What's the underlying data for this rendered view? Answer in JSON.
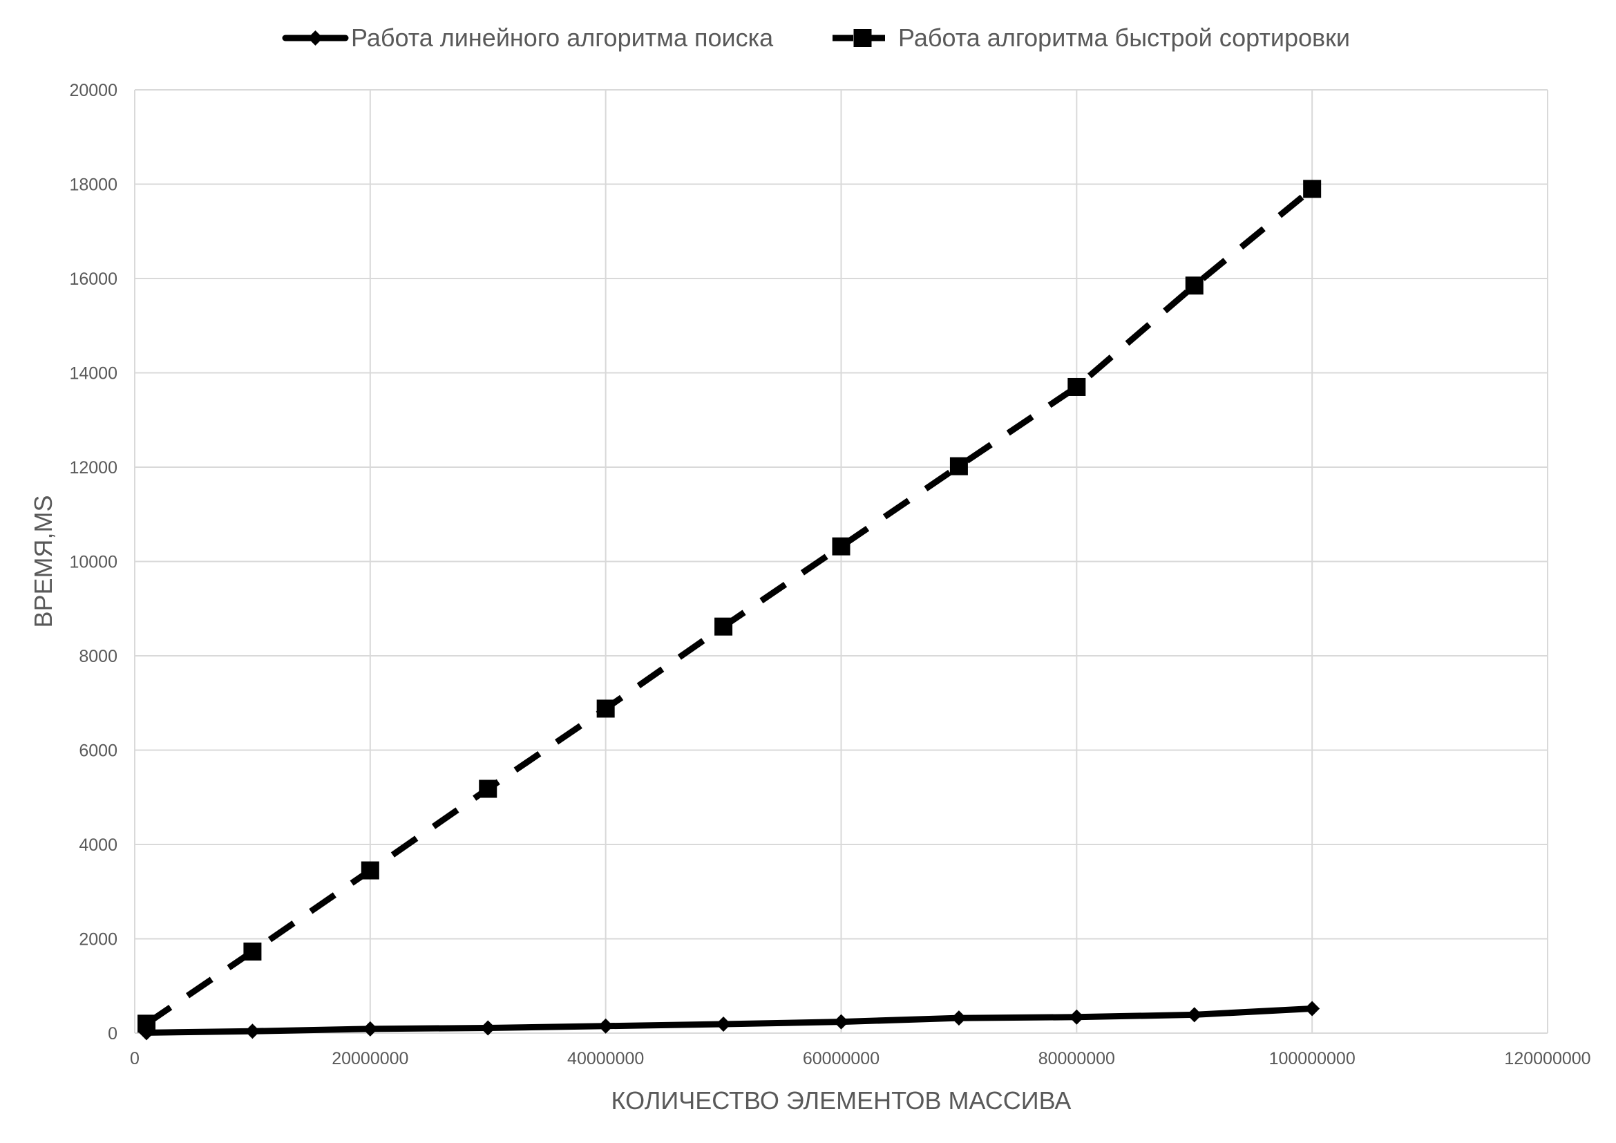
{
  "chart_data": {
    "type": "line",
    "title": "",
    "xlabel": "КОЛИЧЕСТВО ЭЛЕМЕНТОВ МАССИВА",
    "ylabel": "ВРЕМЯ,MS",
    "xlim": [
      0,
      120000000
    ],
    "ylim": [
      0,
      20000
    ],
    "x_ticks": [
      0,
      20000000,
      40000000,
      60000000,
      80000000,
      100000000,
      120000000
    ],
    "y_ticks": [
      0,
      2000,
      4000,
      6000,
      8000,
      10000,
      12000,
      14000,
      16000,
      18000,
      20000
    ],
    "x_tick_labels": [
      "0",
      "20000000",
      "40000000",
      "60000000",
      "80000000",
      "100000000",
      "120000000"
    ],
    "y_tick_labels": [
      "0",
      "2000",
      "4000",
      "6000",
      "8000",
      "10000",
      "12000",
      "14000",
      "16000",
      "18000",
      "20000"
    ],
    "grid": true,
    "legend_position": "top",
    "x": [
      1000000,
      10000000,
      20000000,
      30000000,
      40000000,
      50000000,
      60000000,
      70000000,
      80000000,
      90000000,
      100000000
    ],
    "series": [
      {
        "name": "Работа линейного алгоритма поиска",
        "marker": "diamond",
        "line_style": "solid",
        "color": "#000000",
        "values": [
          10,
          40,
          90,
          110,
          150,
          190,
          240,
          320,
          340,
          390,
          520
        ]
      },
      {
        "name": "Работа алгоритма быстрой сортировки",
        "marker": "square",
        "line_style": "dashed",
        "color": "#000000",
        "values": [
          200,
          1730,
          3450,
          5180,
          6880,
          8620,
          10320,
          12020,
          13700,
          15850,
          17900
        ]
      }
    ]
  }
}
